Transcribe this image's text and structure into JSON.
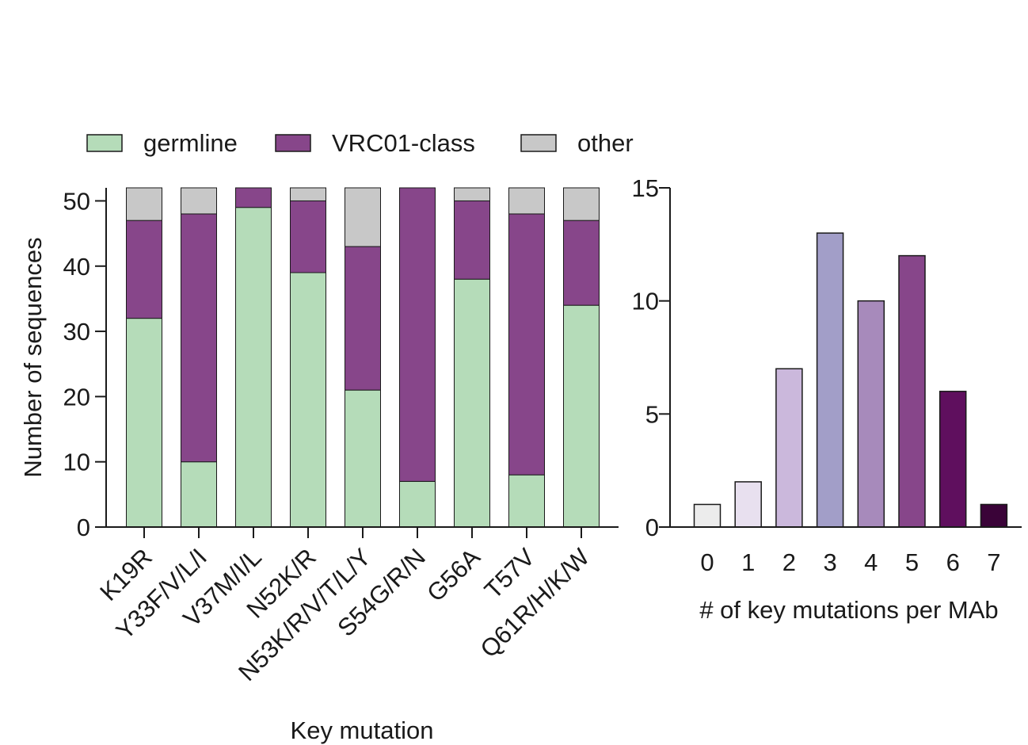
{
  "chart_data": [
    {
      "type": "bar",
      "stacked": true,
      "title": "",
      "xlabel": "Key mutation",
      "ylabel": "Number of sequences",
      "ylim": [
        0,
        52
      ],
      "yticks": [
        0,
        10,
        20,
        30,
        40,
        50
      ],
      "categories": [
        "K19R",
        "Y33F/V/L/I",
        "V37M/I/L",
        "N52K/R",
        "N53K/R/V/T/L/Y",
        "S54G/R/N",
        "G56A",
        "T57V",
        "Q61R/H/K/W"
      ],
      "series": [
        {
          "name": "germline",
          "color": "#b5dcb9",
          "values": [
            32,
            10,
            49,
            39,
            21,
            7,
            38,
            8,
            34
          ]
        },
        {
          "name": "VRC01-class",
          "color": "#87468a",
          "values": [
            15,
            38,
            3,
            11,
            22,
            45,
            12,
            40,
            13
          ]
        },
        {
          "name": "other",
          "color": "#c8c8c8",
          "values": [
            5,
            4,
            0,
            2,
            9,
            0,
            2,
            4,
            5
          ]
        }
      ],
      "legend": {
        "position": "top",
        "labels": [
          "germline",
          "VRC01-class",
          "other"
        ]
      }
    },
    {
      "type": "bar",
      "title": "",
      "xlabel": "# of key mutations per MAb",
      "ylabel": "",
      "ylim": [
        0,
        15
      ],
      "yticks": [
        0,
        5,
        10,
        15
      ],
      "categories": [
        "0",
        "1",
        "2",
        "3",
        "4",
        "5",
        "6",
        "7"
      ],
      "values": [
        1,
        2,
        7,
        13,
        10,
        12,
        6,
        1
      ],
      "colors": [
        "#ececec",
        "#e8e0ef",
        "#cbb8dc",
        "#a29ec8",
        "#a78abb",
        "#87468a",
        "#5f0f5e",
        "#3a0338"
      ]
    }
  ]
}
